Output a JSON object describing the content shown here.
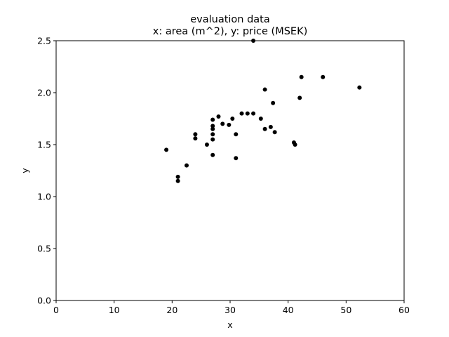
{
  "chart_data": {
    "type": "scatter",
    "title": "evaluation data",
    "subtitle": "x: area (m^2), y: price (MSEK)",
    "xlabel": "x",
    "ylabel": "y",
    "xlim": [
      0,
      60
    ],
    "ylim": [
      0,
      2.5
    ],
    "xticks": [
      0,
      10,
      20,
      30,
      40,
      50,
      60
    ],
    "yticks": [
      0.0,
      0.5,
      1.0,
      1.5,
      2.0,
      2.5
    ],
    "xtick_labels": [
      "0",
      "10",
      "20",
      "30",
      "40",
      "50",
      "60"
    ],
    "ytick_labels": [
      "0.0",
      "0.5",
      "1.0",
      "1.5",
      "2.0",
      "2.5"
    ],
    "grid": false,
    "marker_color": "#000000",
    "points": [
      {
        "x": 19.0,
        "y": 1.45
      },
      {
        "x": 21.0,
        "y": 1.19
      },
      {
        "x": 21.0,
        "y": 1.15
      },
      {
        "x": 22.5,
        "y": 1.3
      },
      {
        "x": 24.0,
        "y": 1.6
      },
      {
        "x": 24.0,
        "y": 1.56
      },
      {
        "x": 26.0,
        "y": 1.5
      },
      {
        "x": 27.0,
        "y": 1.74
      },
      {
        "x": 27.0,
        "y": 1.68
      },
      {
        "x": 27.0,
        "y": 1.65
      },
      {
        "x": 27.0,
        "y": 1.6
      },
      {
        "x": 27.0,
        "y": 1.55
      },
      {
        "x": 27.0,
        "y": 1.4
      },
      {
        "x": 28.0,
        "y": 1.77
      },
      {
        "x": 28.7,
        "y": 1.7
      },
      {
        "x": 29.8,
        "y": 1.69
      },
      {
        "x": 30.4,
        "y": 1.75
      },
      {
        "x": 31.0,
        "y": 1.6
      },
      {
        "x": 31.0,
        "y": 1.37
      },
      {
        "x": 32.0,
        "y": 1.8
      },
      {
        "x": 33.0,
        "y": 1.8
      },
      {
        "x": 34.0,
        "y": 1.8
      },
      {
        "x": 34.0,
        "y": 2.5
      },
      {
        "x": 35.3,
        "y": 1.75
      },
      {
        "x": 36.0,
        "y": 2.03
      },
      {
        "x": 36.0,
        "y": 1.65
      },
      {
        "x": 37.0,
        "y": 1.67
      },
      {
        "x": 37.4,
        "y": 1.9
      },
      {
        "x": 37.7,
        "y": 1.62
      },
      {
        "x": 41.0,
        "y": 1.52
      },
      {
        "x": 41.2,
        "y": 1.5
      },
      {
        "x": 42.0,
        "y": 1.95
      },
      {
        "x": 42.3,
        "y": 2.15
      },
      {
        "x": 46.0,
        "y": 2.15
      },
      {
        "x": 52.3,
        "y": 2.05
      }
    ]
  }
}
